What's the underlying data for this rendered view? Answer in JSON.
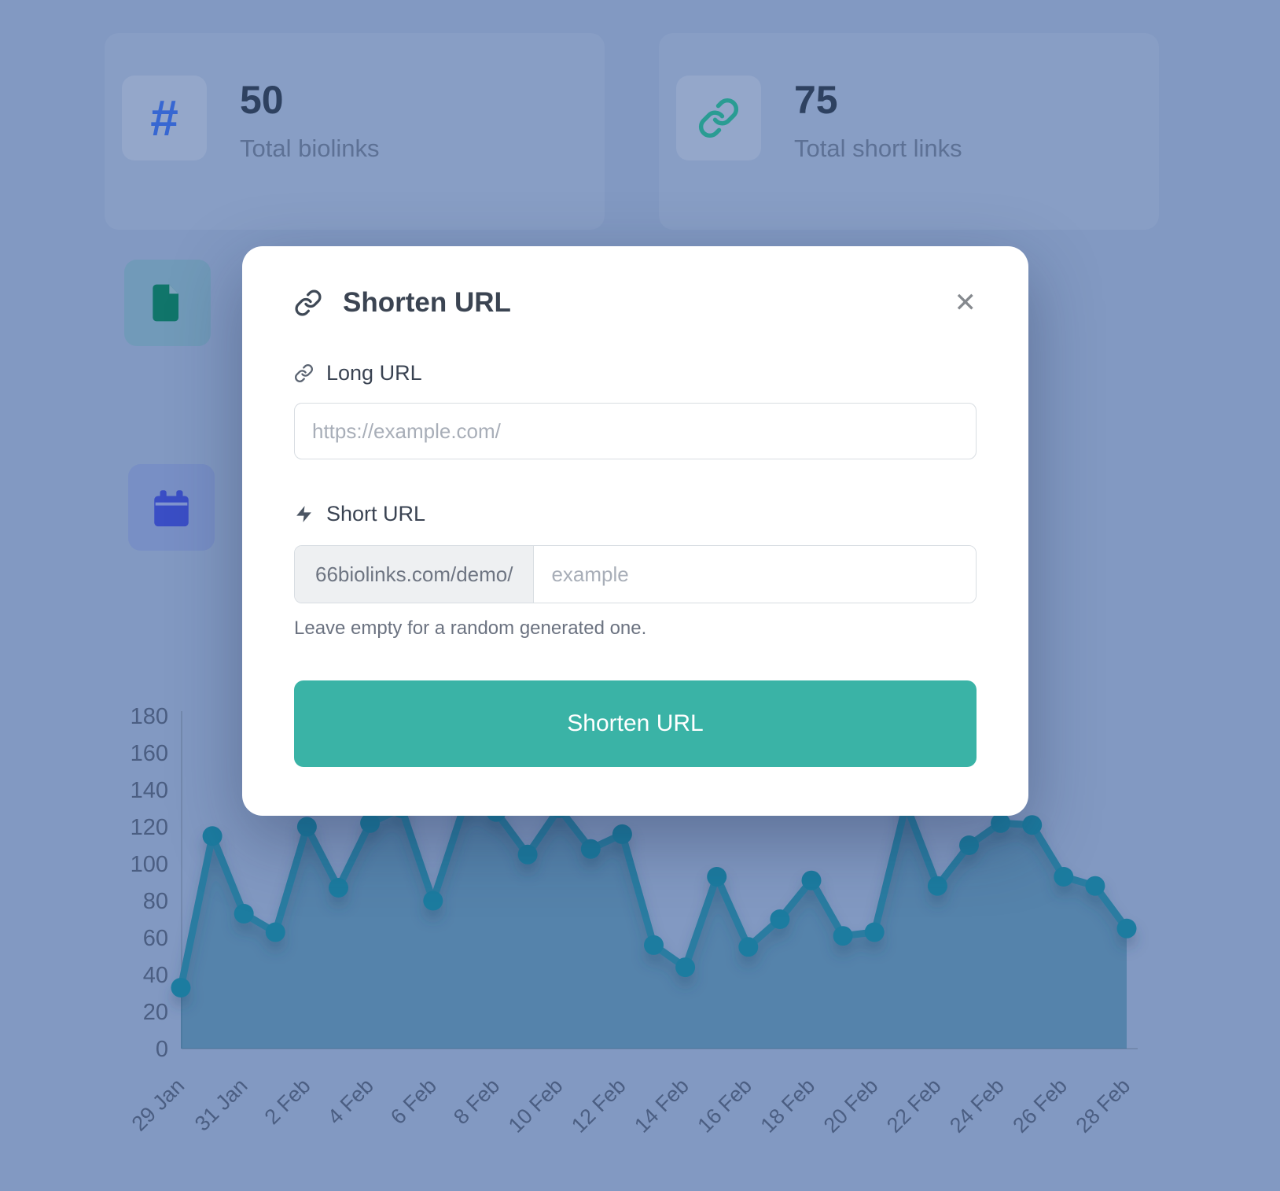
{
  "colors": {
    "page_bg": "#8299c2",
    "accent_teal": "#3ab3a6",
    "chart_line": "#2a7ca1",
    "chart_dot": "#1f7ba0",
    "chart_fill": "rgba(32,104,144,0.45)",
    "hash_blue": "#3767d2",
    "link_teal": "#2a9c93",
    "file_green": "#10756a",
    "calendar_blue": "#3a4ec5"
  },
  "stats": [
    {
      "icon": "hash-icon",
      "icon_glyph": "#",
      "value": "50",
      "label": "Total biolinks"
    },
    {
      "icon": "link-icon",
      "value": "75",
      "label": "Total short links"
    }
  ],
  "modal": {
    "title": "Shorten URL",
    "close_glyph": "✕",
    "long_url": {
      "label": "Long URL",
      "placeholder": "https://example.com/"
    },
    "short_url": {
      "label": "Short URL",
      "prefix": "66biolinks.com/demo/",
      "placeholder": "example"
    },
    "helper": "Leave empty for a random generated one.",
    "submit_label": "Shorten URL"
  },
  "chart_data": {
    "type": "line",
    "x": [
      "29 Jan",
      "30 Jan",
      "31 Jan",
      "1 Feb",
      "2 Feb",
      "3 Feb",
      "4 Feb",
      "5 Feb",
      "6 Feb",
      "7 Feb",
      "8 Feb",
      "9 Feb",
      "10 Feb",
      "11 Feb",
      "12 Feb",
      "13 Feb",
      "14 Feb",
      "15 Feb",
      "16 Feb",
      "17 Feb",
      "18 Feb",
      "19 Feb",
      "20 Feb",
      "21 Feb",
      "22 Feb",
      "23 Feb",
      "24 Feb",
      "25 Feb",
      "26 Feb",
      "27 Feb",
      "28 Feb"
    ],
    "values": [
      33,
      115,
      73,
      63,
      120,
      87,
      122,
      130,
      80,
      132,
      128,
      105,
      130,
      108,
      116,
      56,
      44,
      93,
      55,
      70,
      91,
      61,
      63,
      132,
      88,
      110,
      122,
      121,
      93,
      88,
      65
    ],
    "title": "",
    "xlabel": "",
    "ylabel": "",
    "ylim": [
      0,
      180
    ],
    "ytick_step": 20,
    "xtick_every": 2,
    "grid": false,
    "legend": "none"
  }
}
